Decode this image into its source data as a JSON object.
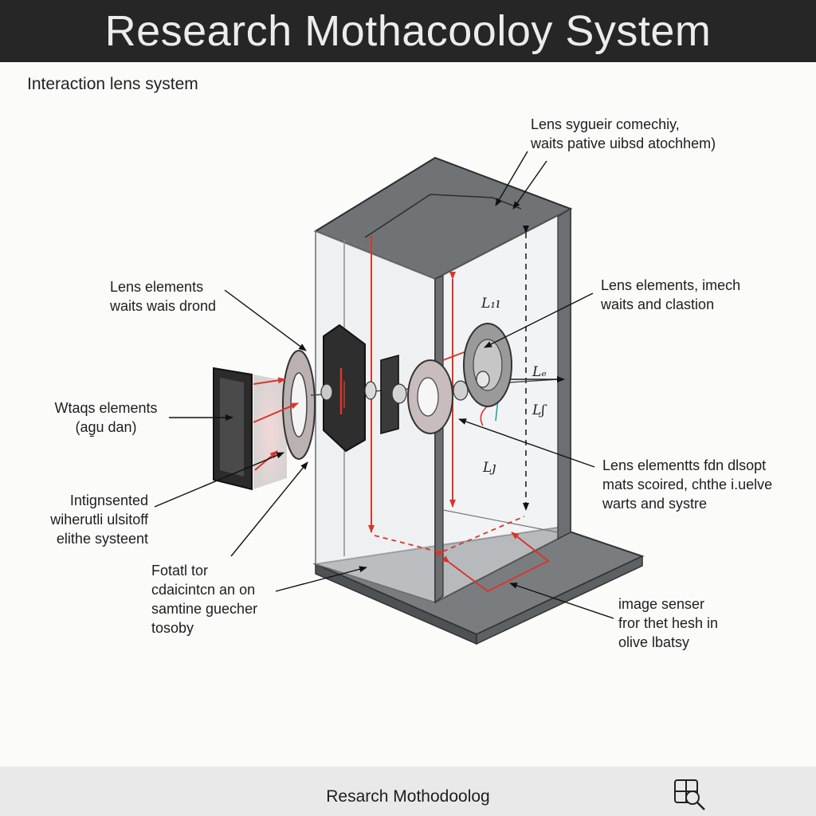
{
  "header": {
    "title": "Research Mothacooloy System"
  },
  "subtitle": "Interaction  lens system",
  "labels": {
    "top_right": "Lens sygueir comechiy,\nwaits pative uibsd atochhem)",
    "left_upper": "Lens elements\nwaits wais drond",
    "left_middle": "Wtaqs elements\n(ag̱u dan)",
    "left_lower": "Intignsented\nwiherutli ulsitoff\nelithe systeent",
    "bottom_left": "Fotatl tor\ncdaicintcn an on\nsamtine guecher\ntosoby",
    "right_upper": "Lens elements, imech\nwaits and clastion",
    "right_middle": "Lens elementts fdn dlsopt\nmats scoired, chthe i.uelve\nwarts and systre",
    "bottom_right": "image senser\nfror thet hesh in\nolive lbatsy"
  },
  "symbols": {
    "l1": "L₁ı",
    "l2": "Lₑ",
    "l3": "Lʃ",
    "l4": "Lȷ"
  },
  "footer": {
    "label": "Resarch Mothodoolog",
    "icon": "search-grid-icon"
  },
  "colors": {
    "header_bg": "#262626",
    "accent_red": "#d8362b",
    "panel_gray": "#6f7275",
    "teal": "#2aa39a"
  }
}
